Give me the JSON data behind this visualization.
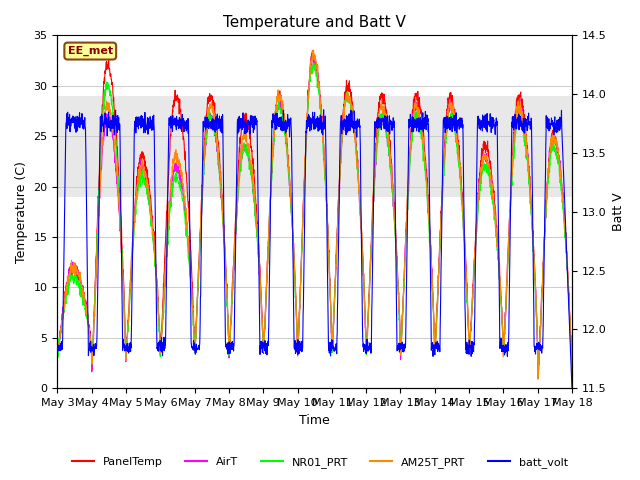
{
  "title": "Temperature and Batt V",
  "xlabel": "Time",
  "ylabel_left": "Temperature (C)",
  "ylabel_right": "Batt V",
  "ylim_left": [
    0,
    35
  ],
  "ylim_right": [
    11.5,
    14.5
  ],
  "station_label": "EE_met",
  "shade_band": [
    19,
    29
  ],
  "colors": {
    "PanelTemp": "#ff0000",
    "AirT": "#ff00ff",
    "NR01_PRT": "#00ff00",
    "AM25T_PRT": "#ff8800",
    "batt_volt": "#0000ff"
  },
  "legend_labels": [
    "PanelTemp",
    "AirT",
    "NR01_PRT",
    "AM25T_PRT",
    "batt_volt"
  ],
  "n_days": 15,
  "pts_per_day": 144,
  "background_color": "#ffffff",
  "shade_color": "#e8e8e8",
  "xtick_labels": [
    "May 3",
    "May 4",
    "May 5",
    "May 6",
    "May 7",
    "May 8",
    "May 9",
    "May 10",
    "May 11",
    "May 12",
    "May 13",
    "May 14",
    "May 15",
    "May 16",
    "May 17",
    "May 18"
  ],
  "title_fontsize": 11,
  "label_fontsize": 9,
  "tick_fontsize": 8,
  "day_night_min": [
    3.5,
    2.0,
    3.5,
    3.5,
    3.5,
    3.5,
    3.5,
    3.5,
    3.5,
    3.5,
    3.5,
    3.5,
    3.5,
    3.5,
    1.0
  ],
  "day_peaks_air": [
    12,
    27,
    22,
    22,
    27,
    24,
    28,
    33,
    29,
    27,
    28,
    28,
    23,
    28,
    25
  ],
  "day_peaks_panel": [
    12,
    32,
    23,
    29,
    29,
    27,
    29,
    33,
    30,
    29,
    29,
    29,
    24,
    29,
    25
  ],
  "day_peaks_nr01": [
    11,
    30,
    21,
    21,
    27,
    24,
    28,
    32,
    29,
    27,
    27,
    27,
    22,
    27,
    24
  ],
  "day_peaks_am25": [
    12,
    28,
    22,
    23,
    28,
    25,
    29,
    33,
    29,
    28,
    28,
    28,
    23,
    28,
    25
  ]
}
